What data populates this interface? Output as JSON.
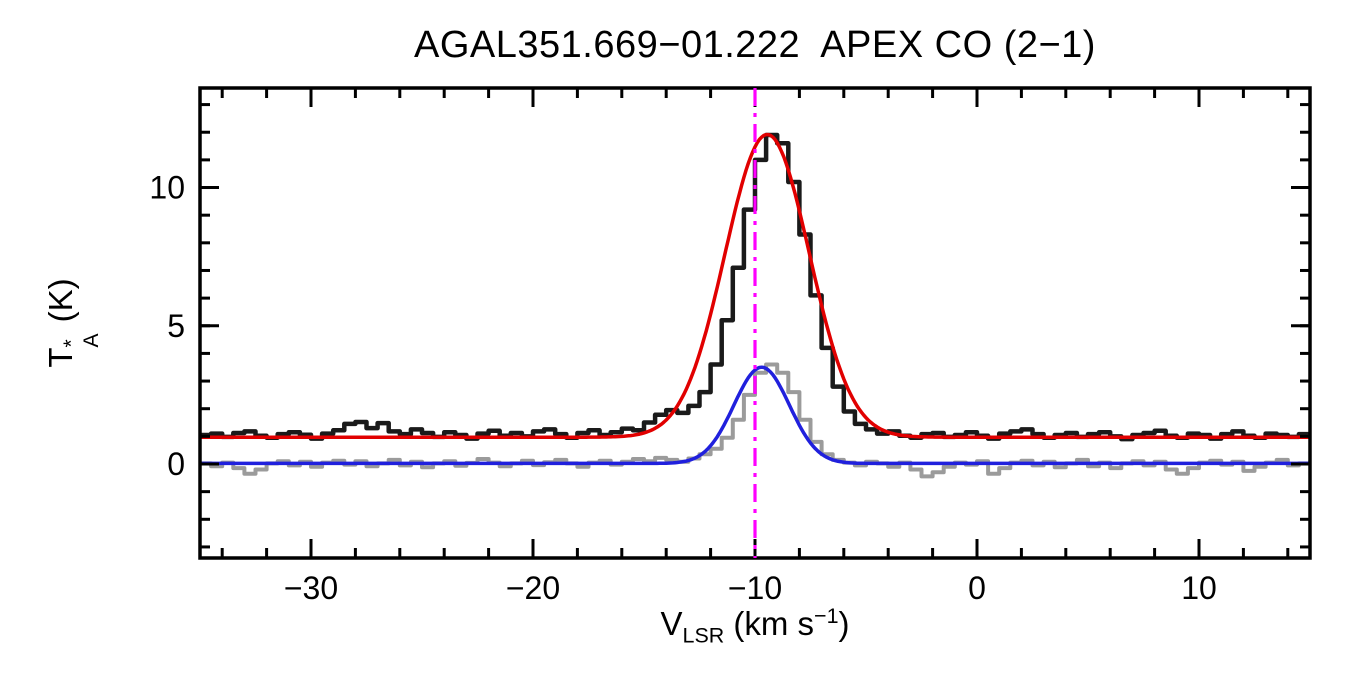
{
  "title": "AGAL351.669−01.222  APEX CO (2−1)",
  "ylabel": {
    "base": "T",
    "sup": "*",
    "sub": "A",
    "rest": " (K)"
  },
  "xlabel": {
    "base": "V",
    "sub": "LSR",
    "mid": " (km s",
    "sup": "−1",
    "end": ")"
  },
  "chart_data": {
    "type": "line",
    "title": "AGAL351.669−01.222  APEX CO (2−1)",
    "xlabel": "V_LSR (km s^-1)",
    "ylabel": "T_A^* (K)",
    "xlim": [
      -35,
      15
    ],
    "ylim": [
      -3.4,
      13.6
    ],
    "grid": false,
    "legend": "none",
    "x_start": -35.0,
    "dx": 0.5,
    "xticks": {
      "values": [
        -30,
        -20,
        -10,
        0,
        10
      ],
      "labels": [
        "−30",
        "−20",
        "−10",
        "0",
        "10"
      ],
      "minor_step": 2
    },
    "yticks": {
      "values": [
        0,
        5,
        10
      ],
      "labels": [
        "0",
        "5",
        "10"
      ],
      "minor_step": 1
    },
    "series": [
      {
        "name": "gray-spectrum",
        "style": "histogram",
        "color": "#9b9b9b",
        "width": 4,
        "values": [
          0.02,
          -0.08,
          0.05,
          -0.15,
          -0.35,
          -0.2,
          0.02,
          0.1,
          -0.05,
          0.08,
          -0.1,
          0.05,
          0.12,
          -0.02,
          0.1,
          -0.08,
          0.02,
          0.15,
          -0.05,
          0.08,
          -0.12,
          0.02,
          0.1,
          -0.06,
          0.04,
          0.18,
          0.05,
          -0.08,
          0.02,
          0.12,
          -0.04,
          0.06,
          0.15,
          0.02,
          -0.1,
          0.05,
          0.12,
          -0.02,
          0.08,
          0.18,
          0.1,
          0.22,
          0.15,
          0.08,
          0.2,
          0.35,
          0.55,
          0.95,
          1.6,
          2.5,
          3.3,
          3.6,
          3.3,
          2.6,
          1.6,
          0.8,
          0.35,
          0.15,
          0.05,
          -0.05,
          0.08,
          0.02,
          -0.1,
          0.05,
          -0.2,
          -0.45,
          -0.3,
          -0.1,
          0.05,
          -0.02,
          0.1,
          -0.35,
          -0.15,
          0.05,
          0.12,
          -0.05,
          0.08,
          -0.12,
          0.02,
          0.15,
          -0.08,
          0.05,
          -0.15,
          0.02,
          0.1,
          -0.05,
          0.08,
          -0.2,
          -0.35,
          -0.15,
          0.05,
          0.12,
          -0.02,
          0.08,
          -0.25,
          -0.1,
          0.05,
          0.15,
          -0.05,
          0.02,
          0.08
        ]
      },
      {
        "name": "blue-fit",
        "style": "gaussian",
        "color": "#2020dd",
        "width": 3.5,
        "baseline": 0.02,
        "amplitude": 3.48,
        "center": -9.7,
        "sigma": 1.25
      },
      {
        "name": "black-spectrum",
        "style": "histogram",
        "color": "#1a1a1a",
        "width": 4.5,
        "values": [
          1.05,
          1.1,
          0.98,
          1.12,
          1.18,
          1.02,
          0.95,
          1.08,
          1.15,
          1.06,
          0.92,
          1.1,
          1.22,
          1.45,
          1.52,
          1.3,
          1.48,
          1.18,
          1.08,
          1.25,
          1.12,
          0.98,
          1.15,
          1.05,
          0.92,
          1.1,
          1.2,
          1.02,
          1.12,
          1.0,
          1.18,
          1.25,
          1.08,
          0.95,
          1.12,
          1.22,
          1.05,
          1.15,
          1.28,
          1.22,
          1.5,
          1.78,
          1.95,
          1.85,
          2.1,
          2.6,
          3.6,
          5.2,
          7.1,
          9.2,
          11.0,
          11.9,
          11.6,
          10.2,
          8.3,
          6.1,
          4.2,
          2.8,
          1.9,
          1.45,
          1.25,
          1.1,
          1.18,
          1.02,
          0.95,
          1.08,
          1.12,
          0.98,
          1.05,
          1.15,
          1.02,
          0.92,
          1.1,
          1.18,
          1.25,
          1.08,
          0.95,
          1.05,
          1.12,
          0.98,
          1.08,
          1.15,
          1.0,
          0.9,
          1.05,
          1.12,
          1.2,
          1.02,
          0.95,
          1.1,
          1.05,
          0.92,
          1.08,
          1.18,
          1.02,
          0.95,
          1.1,
          1.05,
          0.98,
          1.08,
          1.02
        ]
      },
      {
        "name": "red-fit",
        "style": "gaussian",
        "color": "#e10000",
        "width": 3.5,
        "baseline": 0.97,
        "amplitude": 10.95,
        "center": -9.45,
        "sigma": 1.9
      }
    ],
    "vline": {
      "x": -10.0,
      "color": "#ff00ff",
      "style": "dash-dot"
    }
  }
}
